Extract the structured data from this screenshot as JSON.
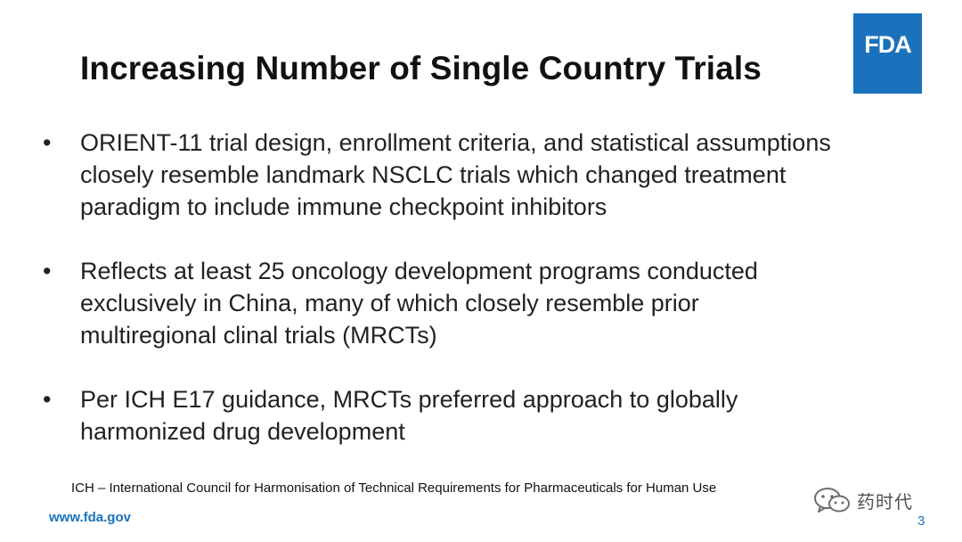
{
  "slide": {
    "title": "Increasing Number of Single Country Trials",
    "logo_text": "FDA",
    "bullets": [
      {
        "lines": [
          "ORIENT-11 trial design, enrollment criteria, and statistical assumptions",
          "closely resemble landmark NSCLC trials which changed treatment",
          "paradigm to include immune checkpoint inhibitors"
        ]
      },
      {
        "lines": [
          "Reflects at least 25 oncology development programs conducted",
          "exclusively in China, many of which closely resemble prior",
          "multiregional clinal trials (MRCTs)"
        ]
      },
      {
        "lines": [
          "Per ICH E17 guidance, MRCTs preferred approach to globally",
          "harmonized drug development"
        ]
      }
    ],
    "bullet_symbol": "•",
    "footnote": "ICH – International Council for Harmonisation of Technical Requirements for Pharmaceuticals for Human Use",
    "url": "www.fda.gov",
    "page_number": "3"
  },
  "watermark": {
    "text": "药时代",
    "icon": "wechat-icon"
  },
  "colors": {
    "fda_blue": "#1a72bd",
    "text": "#222222",
    "background": "#ffffff"
  }
}
